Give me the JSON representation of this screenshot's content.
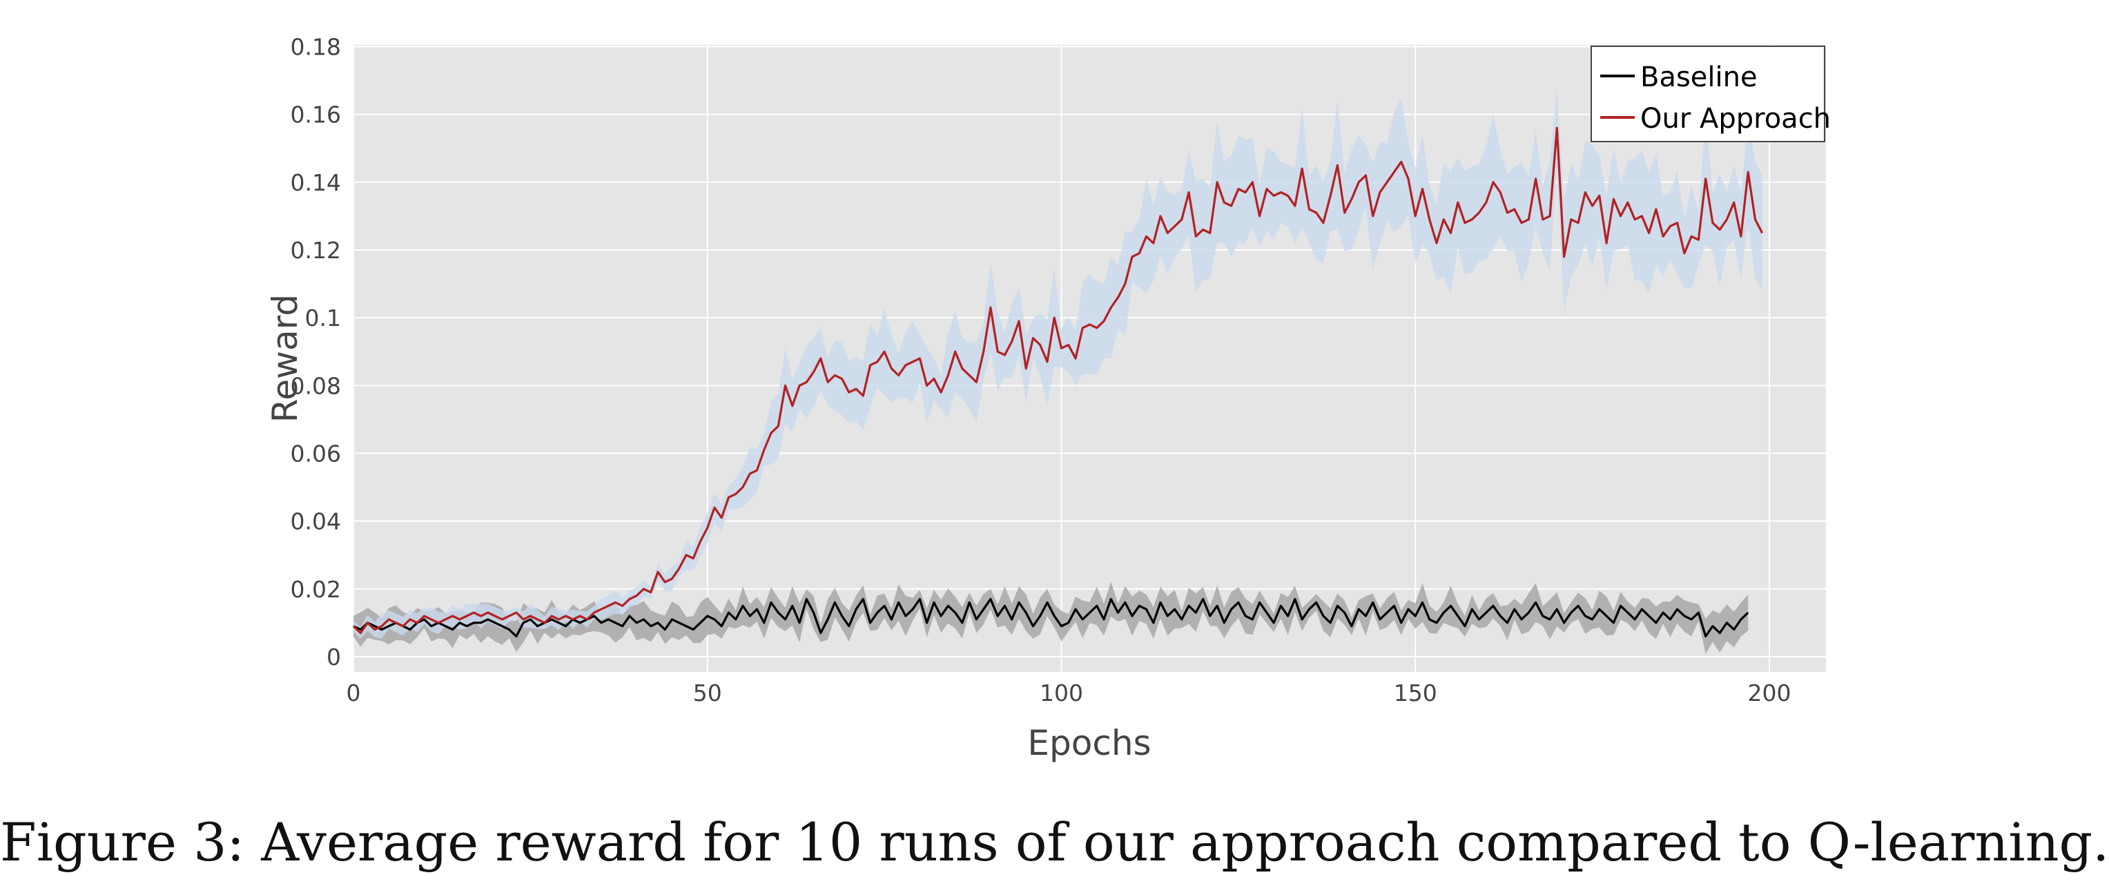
{
  "caption": "Figure 3: Average reward for 10 runs of our approach compared to Q-learning.",
  "chart_data": {
    "type": "line",
    "title": "",
    "xlabel": "Epochs",
    "ylabel": "Reward",
    "xlim": [
      0,
      208
    ],
    "ylim": [
      -0.0045,
      0.1805
    ],
    "xticks": [
      0,
      50,
      100,
      150,
      200
    ],
    "xtick_labels": [
      "0",
      "50",
      "100",
      "150",
      "200"
    ],
    "yticks": [
      0,
      0.02,
      0.04,
      0.06,
      0.08,
      0.1,
      0.12,
      0.14,
      0.16,
      0.18
    ],
    "ytick_labels": [
      "0",
      "0.02",
      "0.04",
      "0.06",
      "0.08",
      "0.1",
      "0.12",
      "0.14",
      "0.16",
      "0.18"
    ],
    "grid": true,
    "legend": "top-right",
    "background": "#e5e5e5",
    "grid_color": "#ffffff",
    "series": [
      {
        "name": "Baseline",
        "color": "#000000",
        "band_color": "#a8a8a8",
        "x_start": 0,
        "x_step": 1,
        "values": [
          0.009,
          0.008,
          0.01,
          0.009,
          0.008,
          0.009,
          0.01,
          0.009,
          0.008,
          0.01,
          0.011,
          0.009,
          0.01,
          0.009,
          0.008,
          0.01,
          0.009,
          0.01,
          0.01,
          0.011,
          0.01,
          0.009,
          0.008,
          0.006,
          0.01,
          0.011,
          0.009,
          0.01,
          0.011,
          0.01,
          0.009,
          0.011,
          0.01,
          0.011,
          0.012,
          0.01,
          0.011,
          0.01,
          0.009,
          0.012,
          0.01,
          0.011,
          0.009,
          0.01,
          0.008,
          0.011,
          0.01,
          0.009,
          0.008,
          0.01,
          0.012,
          0.011,
          0.009,
          0.013,
          0.011,
          0.015,
          0.012,
          0.014,
          0.01,
          0.016,
          0.013,
          0.011,
          0.015,
          0.01,
          0.017,
          0.013,
          0.007,
          0.011,
          0.016,
          0.012,
          0.009,
          0.014,
          0.017,
          0.01,
          0.013,
          0.015,
          0.011,
          0.016,
          0.012,
          0.014,
          0.017,
          0.01,
          0.016,
          0.012,
          0.015,
          0.013,
          0.01,
          0.016,
          0.011,
          0.014,
          0.017,
          0.012,
          0.015,
          0.011,
          0.016,
          0.013,
          0.009,
          0.012,
          0.016,
          0.012,
          0.009,
          0.01,
          0.014,
          0.011,
          0.013,
          0.015,
          0.011,
          0.017,
          0.013,
          0.016,
          0.012,
          0.015,
          0.014,
          0.01,
          0.016,
          0.012,
          0.014,
          0.011,
          0.015,
          0.013,
          0.017,
          0.012,
          0.015,
          0.01,
          0.014,
          0.016,
          0.012,
          0.011,
          0.016,
          0.013,
          0.01,
          0.015,
          0.012,
          0.017,
          0.011,
          0.014,
          0.016,
          0.012,
          0.01,
          0.015,
          0.013,
          0.009,
          0.014,
          0.012,
          0.016,
          0.011,
          0.013,
          0.015,
          0.01,
          0.014,
          0.012,
          0.016,
          0.011,
          0.01,
          0.013,
          0.015,
          0.012,
          0.009,
          0.014,
          0.011,
          0.013,
          0.015,
          0.012,
          0.01,
          0.014,
          0.011,
          0.013,
          0.016,
          0.012,
          0.011,
          0.014,
          0.01,
          0.013,
          0.015,
          0.012,
          0.011,
          0.014,
          0.012,
          0.01,
          0.015,
          0.013,
          0.011,
          0.014,
          0.012,
          0.01,
          0.013,
          0.011,
          0.014,
          0.012,
          0.011,
          0.013,
          0.006,
          0.009,
          0.007,
          0.01,
          0.008,
          0.011,
          0.013
        ]
      },
      {
        "name": "Our Approach",
        "color": "#b22222",
        "band_color": "#c9d9ee",
        "x_start": 0,
        "x_step": 1,
        "values": [
          0.009,
          0.007,
          0.01,
          0.008,
          0.009,
          0.011,
          0.01,
          0.009,
          0.011,
          0.01,
          0.012,
          0.011,
          0.01,
          0.011,
          0.012,
          0.011,
          0.012,
          0.013,
          0.012,
          0.013,
          0.012,
          0.011,
          0.012,
          0.013,
          0.011,
          0.012,
          0.011,
          0.01,
          0.012,
          0.011,
          0.012,
          0.011,
          0.012,
          0.011,
          0.013,
          0.014,
          0.015,
          0.016,
          0.015,
          0.017,
          0.018,
          0.02,
          0.019,
          0.025,
          0.022,
          0.023,
          0.026,
          0.03,
          0.029,
          0.034,
          0.038,
          0.044,
          0.041,
          0.047,
          0.048,
          0.05,
          0.054,
          0.055,
          0.061,
          0.066,
          0.068,
          0.08,
          0.074,
          0.08,
          0.081,
          0.084,
          0.088,
          0.081,
          0.083,
          0.082,
          0.078,
          0.079,
          0.077,
          0.086,
          0.087,
          0.09,
          0.085,
          0.083,
          0.086,
          0.087,
          0.088,
          0.08,
          0.082,
          0.078,
          0.083,
          0.09,
          0.085,
          0.083,
          0.081,
          0.09,
          0.103,
          0.09,
          0.089,
          0.093,
          0.099,
          0.085,
          0.094,
          0.092,
          0.087,
          0.1,
          0.091,
          0.092,
          0.088,
          0.097,
          0.098,
          0.097,
          0.099,
          0.103,
          0.106,
          0.11,
          0.118,
          0.119,
          0.124,
          0.122,
          0.13,
          0.125,
          0.127,
          0.129,
          0.137,
          0.124,
          0.126,
          0.125,
          0.14,
          0.134,
          0.133,
          0.138,
          0.137,
          0.14,
          0.13,
          0.138,
          0.136,
          0.137,
          0.136,
          0.133,
          0.144,
          0.132,
          0.131,
          0.128,
          0.136,
          0.145,
          0.131,
          0.135,
          0.14,
          0.142,
          0.13,
          0.137,
          0.14,
          0.143,
          0.146,
          0.141,
          0.13,
          0.138,
          0.129,
          0.122,
          0.129,
          0.125,
          0.134,
          0.128,
          0.129,
          0.131,
          0.134,
          0.14,
          0.137,
          0.131,
          0.132,
          0.128,
          0.129,
          0.141,
          0.129,
          0.13,
          0.156,
          0.118,
          0.129,
          0.128,
          0.137,
          0.133,
          0.136,
          0.122,
          0.135,
          0.13,
          0.134,
          0.129,
          0.13,
          0.125,
          0.132,
          0.124,
          0.127,
          0.128,
          0.119,
          0.124,
          0.123,
          0.141,
          0.128,
          0.126,
          0.129,
          0.134,
          0.124,
          0.143,
          0.129,
          0.125
        ]
      }
    ]
  }
}
